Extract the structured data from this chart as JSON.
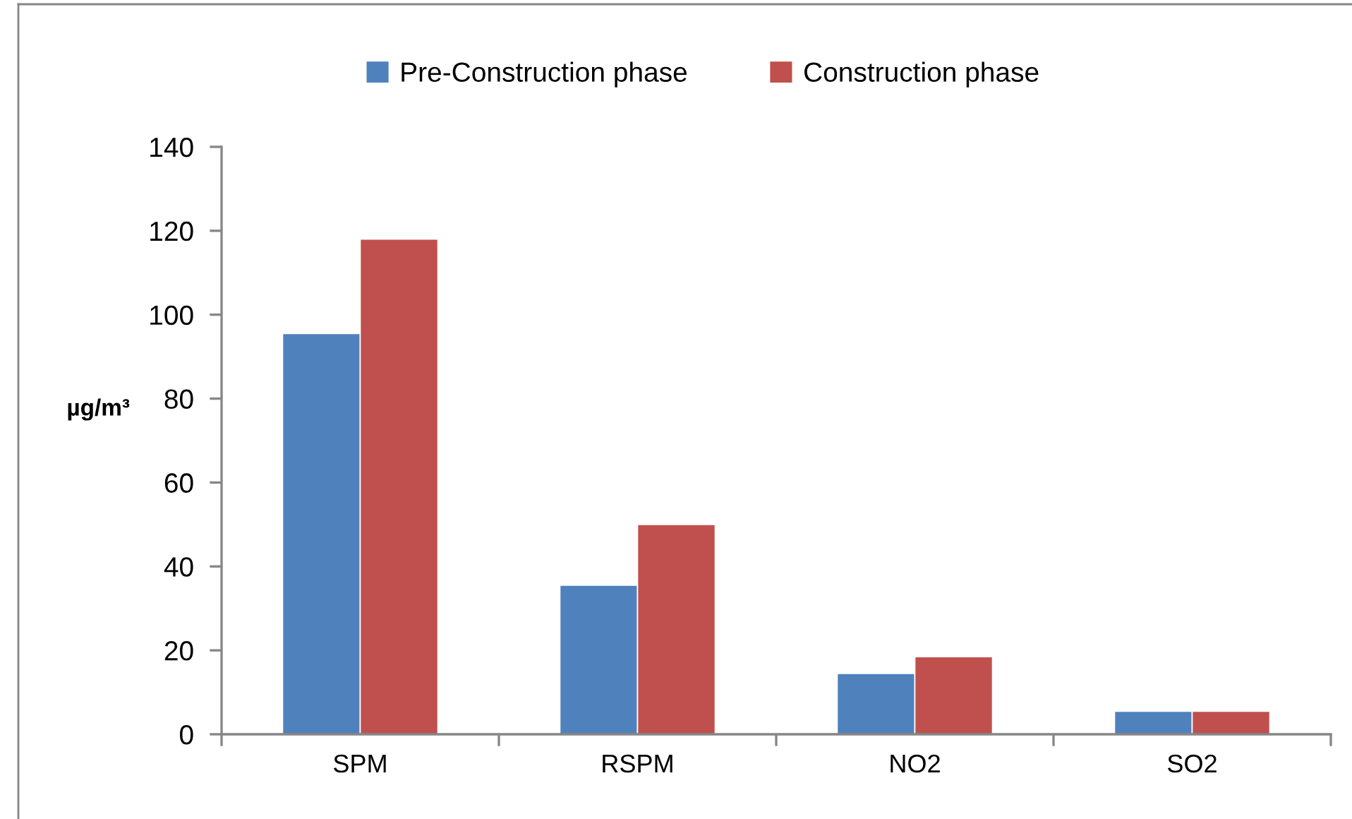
{
  "chart_data": {
    "type": "bar",
    "ylabel": "µg/m³",
    "categories": [
      "SPM",
      "RSPM",
      "NO2",
      "SO2"
    ],
    "series": [
      {
        "name": "Pre-Construction phase",
        "color": "#4f81bd",
        "values": [
          95.5,
          35.5,
          14.5,
          5.5
        ]
      },
      {
        "name": "Construction phase",
        "color": "#c0504d",
        "values": [
          118,
          50,
          18.5,
          5.5
        ]
      }
    ],
    "ylim": [
      0,
      140
    ],
    "yticks": [
      0,
      20,
      40,
      60,
      80,
      100,
      120,
      140
    ],
    "grid": false,
    "legend": "top"
  }
}
